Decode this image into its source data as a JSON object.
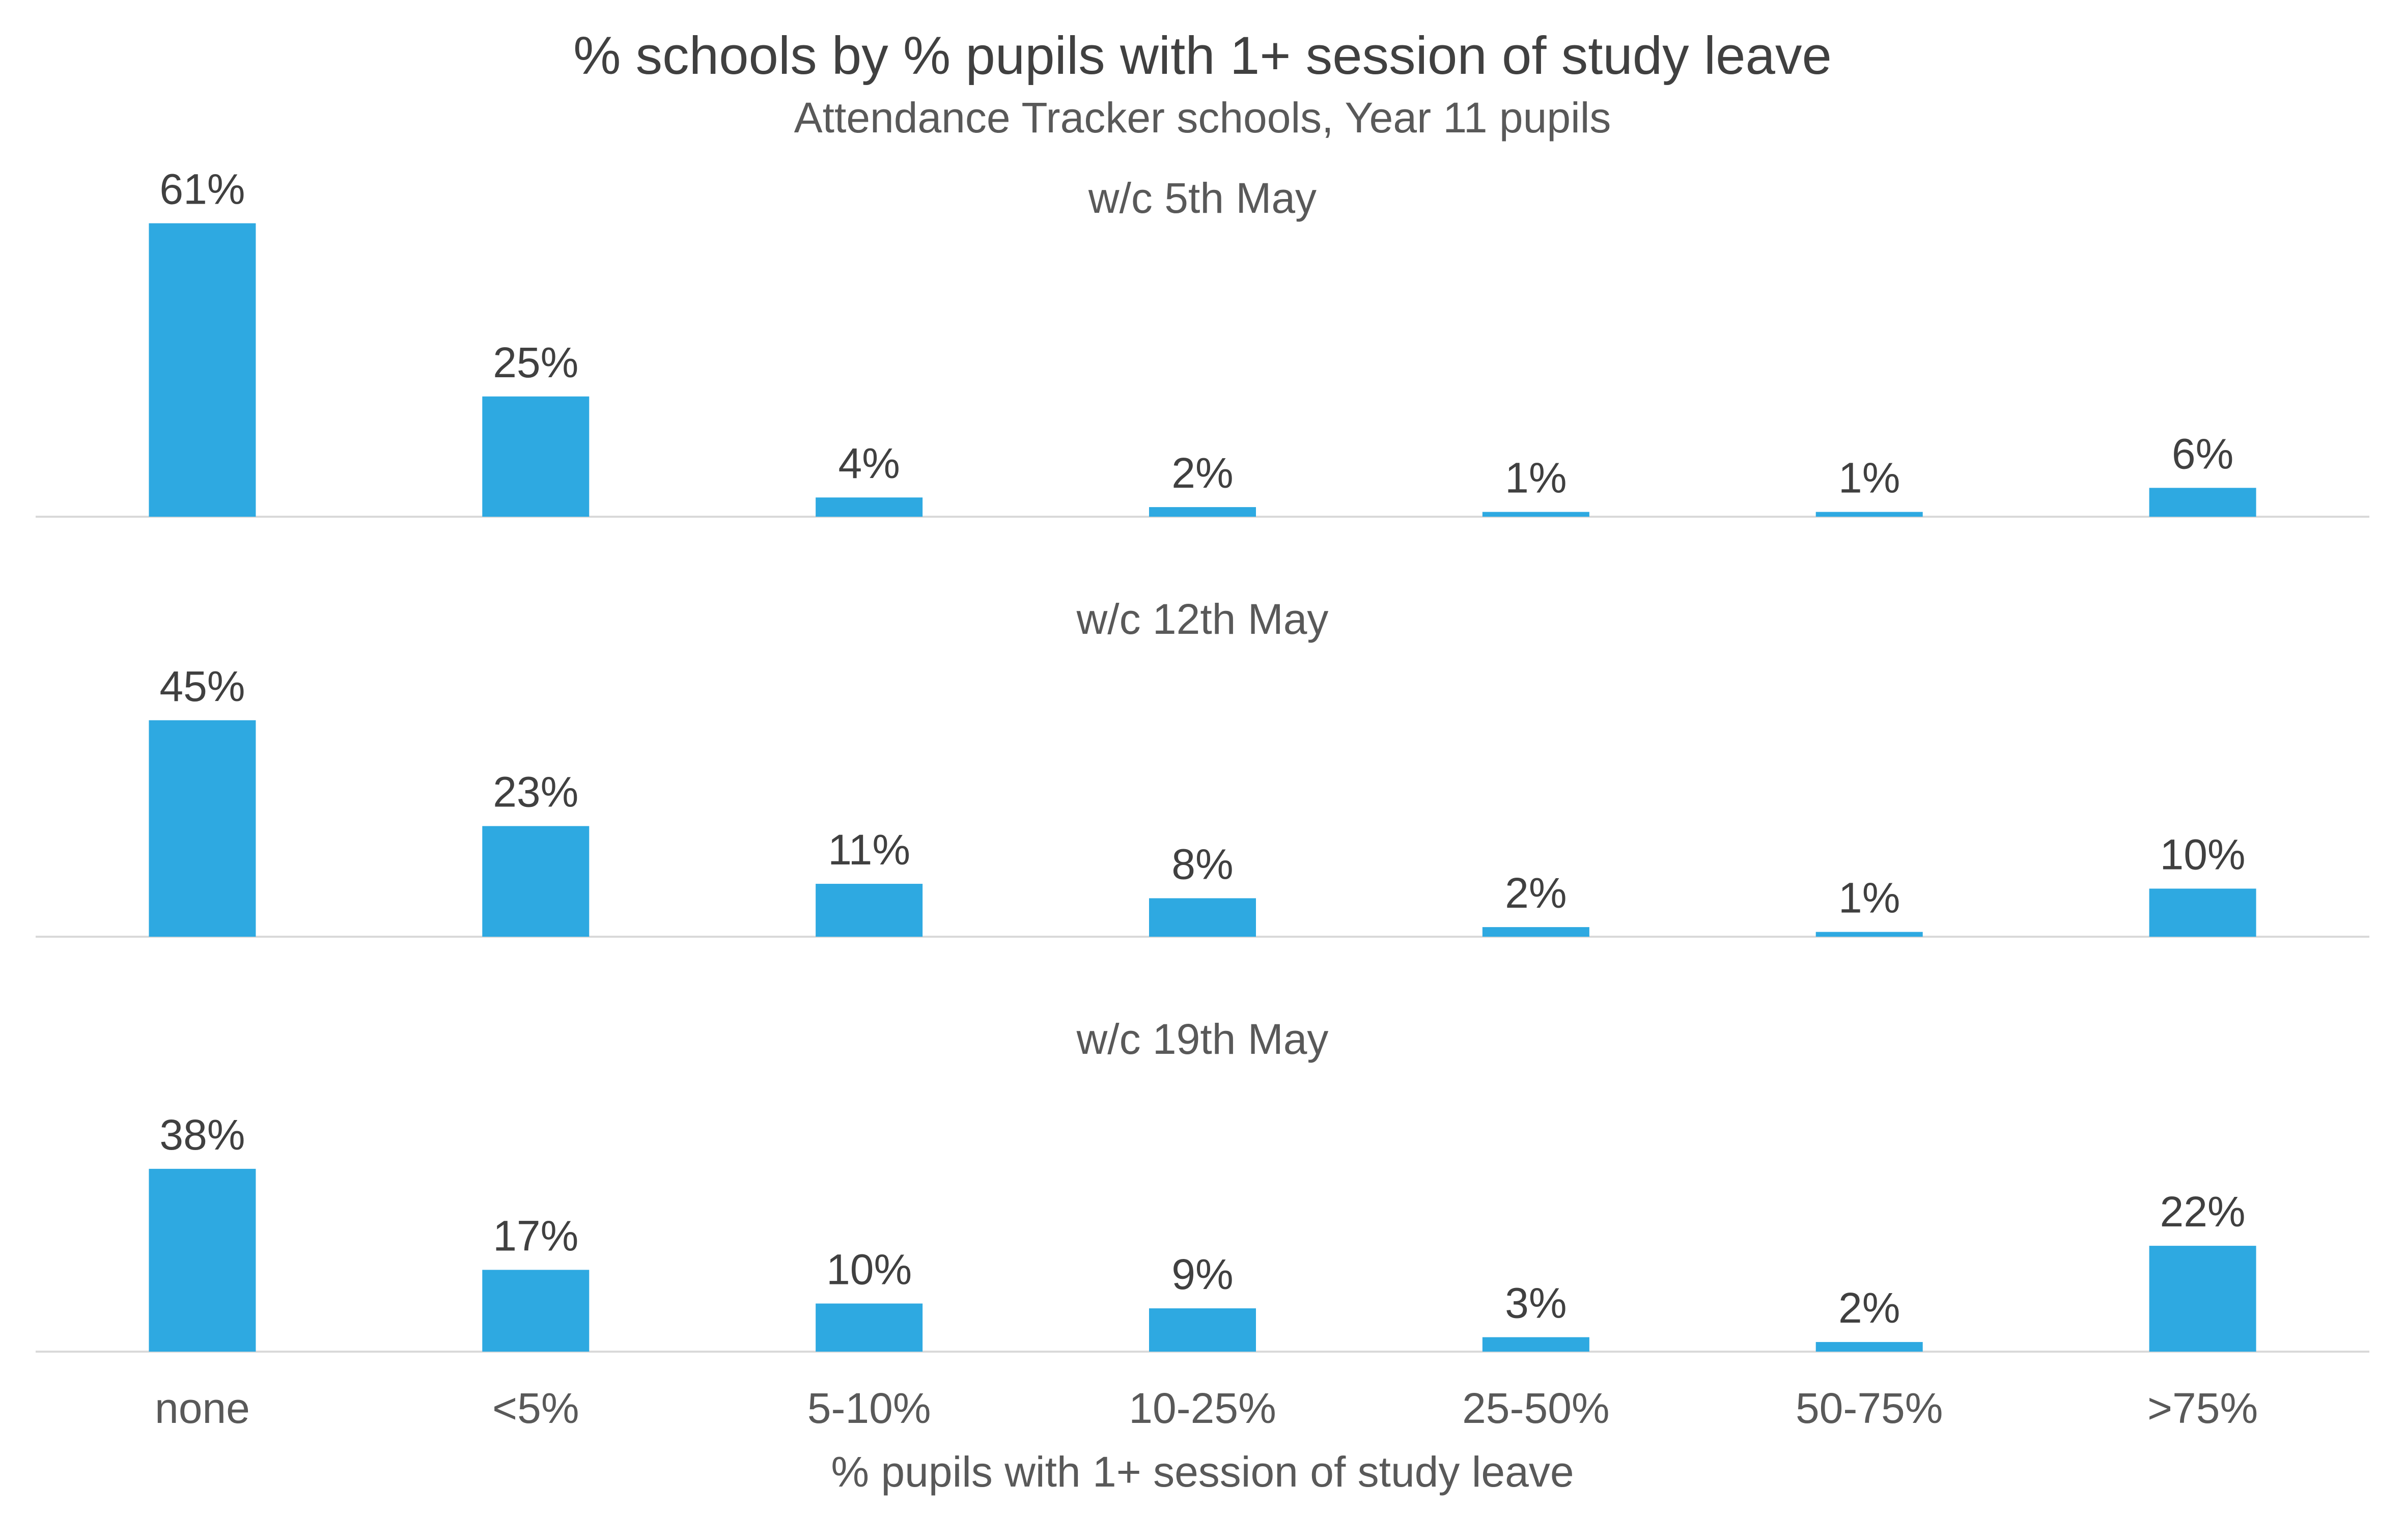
{
  "chart_data": {
    "type": "bar",
    "title": "% schools by % pupils with 1+ session of study leave",
    "subtitle": "Attendance Tracker schools, Year 11 pupils",
    "xlabel": "% pupils with 1+ session of study leave",
    "ylabel": "",
    "categories": [
      "none",
      "<5%",
      "5-10%",
      "10-25%",
      "25-50%",
      "50-75%",
      ">75%"
    ],
    "ylim": [
      0,
      61
    ],
    "grid": false,
    "legend": "none",
    "bar_color": "#2EA9E1",
    "axis_color": "#D9D9D9",
    "panels": [
      {
        "name": "w/c 5th May",
        "values": [
          61,
          25,
          4,
          2,
          1,
          1,
          6
        ],
        "labels": [
          "61%",
          "25%",
          "4%",
          "2%",
          "1%",
          "1%",
          "6%"
        ]
      },
      {
        "name": "w/c 12th May",
        "values": [
          45,
          23,
          11,
          8,
          2,
          1,
          10
        ],
        "labels": [
          "45%",
          "23%",
          "11%",
          "8%",
          "2%",
          "1%",
          "10%"
        ]
      },
      {
        "name": "w/c 19th May",
        "values": [
          38,
          17,
          10,
          9,
          3,
          2,
          22
        ],
        "labels": [
          "38%",
          "17%",
          "10%",
          "9%",
          "3%",
          "2%",
          "22%"
        ]
      }
    ]
  }
}
